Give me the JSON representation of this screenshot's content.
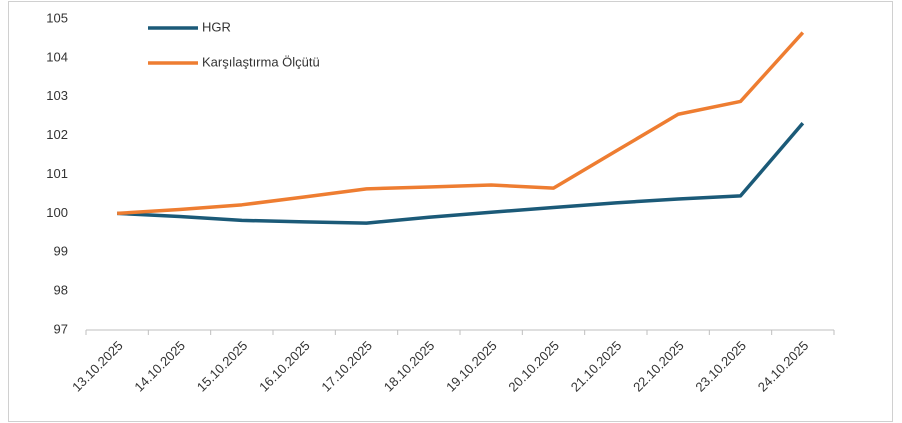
{
  "chart_data": {
    "type": "line",
    "categories": [
      "13.10.2025",
      "14.10.2025",
      "15.10.2025",
      "16.10.2025",
      "17.10.2025",
      "18.10.2025",
      "19.10.2025",
      "20.10.2025",
      "21.10.2025",
      "22.10.2025",
      "23.10.2025",
      "24.10.2025"
    ],
    "series": [
      {
        "name": "HGR",
        "color": "#1b5a78",
        "values": [
          100,
          99.92,
          99.82,
          99.78,
          99.75,
          99.9,
          100.03,
          100.15,
          100.27,
          100.37,
          100.45,
          102.32
        ]
      },
      {
        "name": "Karşılaştırma Ölçütü",
        "color": "#ee7d31",
        "values": [
          100,
          100.1,
          100.22,
          100.42,
          100.63,
          100.68,
          100.73,
          100.65,
          101.6,
          102.55,
          102.88,
          104.65
        ]
      }
    ],
    "ylim": [
      97,
      105
    ],
    "yticks": [
      97,
      98,
      99,
      100,
      101,
      102,
      103,
      104,
      105
    ],
    "grid": false,
    "legend": "upper left"
  }
}
